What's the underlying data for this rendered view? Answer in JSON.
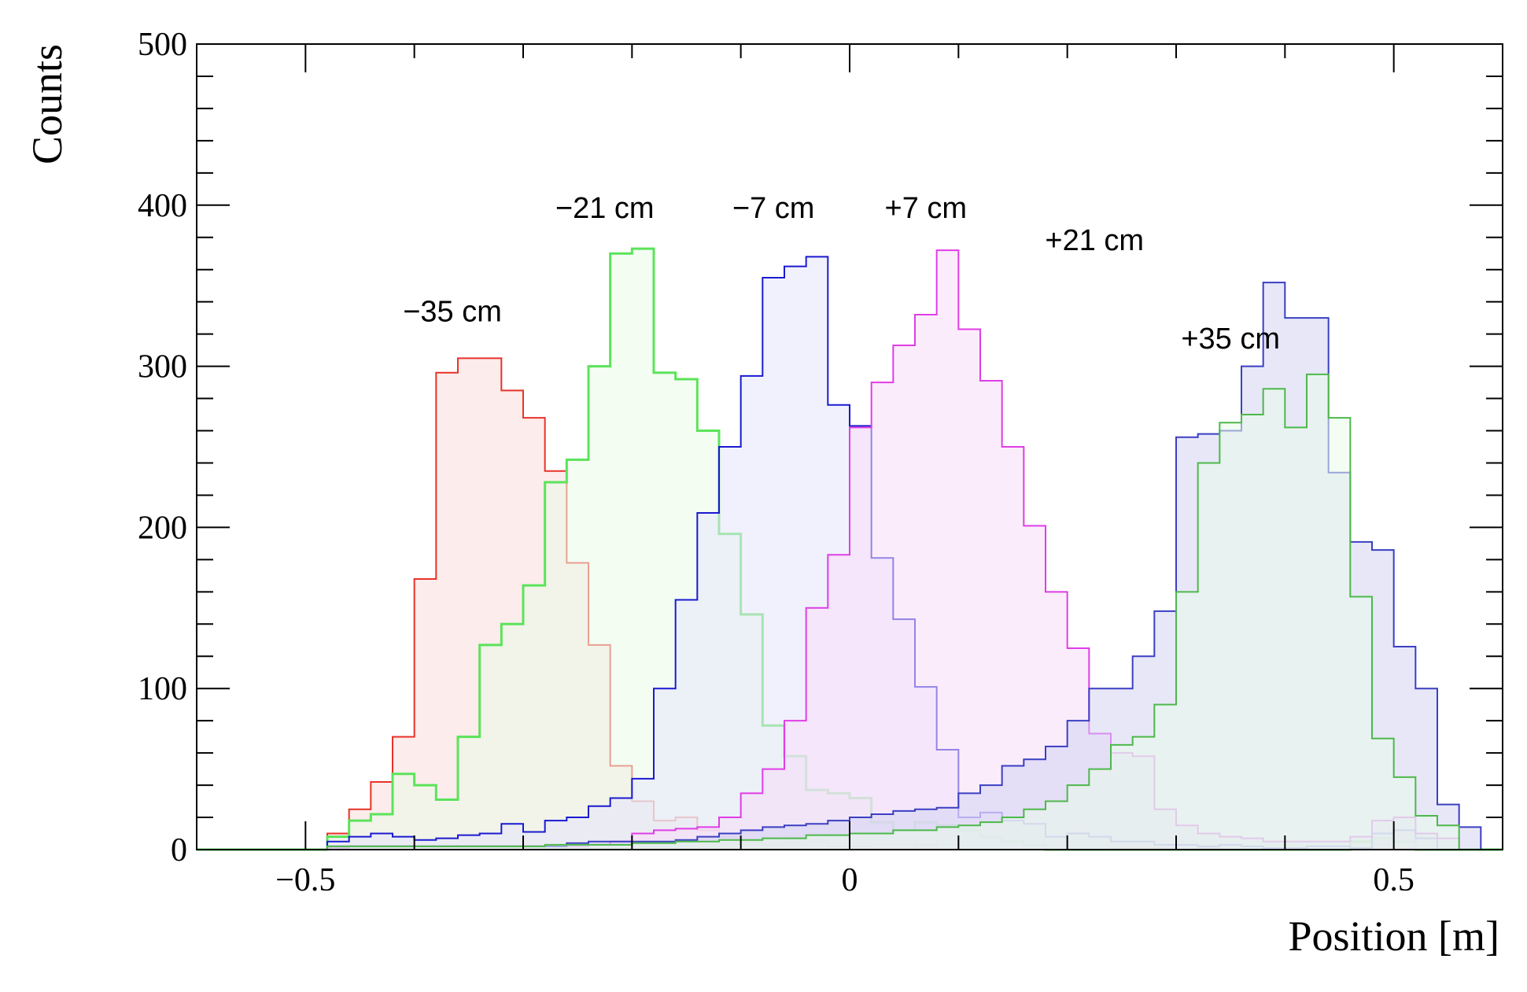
{
  "chart_data": {
    "type": "area",
    "title": "",
    "xlabel": "Position [m]",
    "ylabel": "Counts",
    "xlim": [
      -0.6,
      0.6
    ],
    "ylim": [
      0,
      500
    ],
    "x_ticks": [
      -0.5,
      0,
      0.5
    ],
    "x_tick_labels": [
      "−0.5",
      "0",
      "0.5"
    ],
    "y_ticks": [
      0,
      100,
      200,
      300,
      400,
      500
    ],
    "y_tick_labels": [
      "0",
      "100",
      "200",
      "300",
      "400",
      "500"
    ],
    "grid": false,
    "bin_edges_start": -0.6,
    "bin_width": 0.02,
    "series": [
      {
        "color": "#e8322a",
        "fill": "#f9dcdb",
        "line_width": 2,
        "values": [
          0,
          0,
          0,
          0,
          0,
          0,
          10,
          25,
          42,
          70,
          168,
          296,
          305,
          305,
          285,
          268,
          235,
          178,
          127,
          52,
          30,
          18,
          20,
          12,
          8,
          5,
          3,
          7,
          6,
          2,
          2,
          1,
          1,
          3,
          1,
          0,
          0,
          0,
          0,
          0,
          0,
          0,
          1,
          1,
          1,
          0,
          1,
          0,
          0,
          0,
          1,
          0,
          0,
          1,
          1,
          1,
          0,
          0,
          0,
          0
        ]
      },
      {
        "color": "#5be35a",
        "fill": "#e9fce8",
        "line_width": 3,
        "values": [
          0,
          0,
          0,
          0,
          0,
          0,
          8,
          18,
          22,
          47,
          40,
          31,
          70,
          127,
          140,
          164,
          228,
          242,
          300,
          370,
          373,
          296,
          292,
          260,
          196,
          146,
          77,
          58,
          37,
          35,
          32,
          17,
          12,
          17,
          15,
          12,
          8,
          5,
          3,
          0,
          0,
          0,
          0,
          0,
          0,
          0,
          0,
          0,
          0,
          0,
          0,
          0,
          0,
          5,
          7,
          5,
          0,
          0,
          0,
          0
        ]
      },
      {
        "color": "#1a1ad1",
        "fill": "#e6e6fb",
        "line_width": 2,
        "values": [
          0,
          0,
          0,
          0,
          0,
          0,
          5,
          8,
          10,
          8,
          6,
          7,
          9,
          10,
          16,
          11,
          18,
          20,
          27,
          32,
          44,
          100,
          155,
          209,
          250,
          294,
          355,
          362,
          368,
          276,
          263,
          181,
          143,
          101,
          62,
          20,
          23,
          18,
          16,
          8,
          10,
          8,
          5,
          5,
          3,
          3,
          2,
          3,
          2,
          1,
          1,
          2,
          2,
          1,
          10,
          12,
          7,
          0,
          0,
          0
        ]
      },
      {
        "color": "#df3de6",
        "fill": "#f8dcfa",
        "line_width": 2,
        "values": [
          0,
          0,
          0,
          0,
          0,
          0,
          1,
          2,
          2,
          2,
          2,
          2,
          2,
          2,
          2,
          2,
          2,
          2,
          3,
          5,
          10,
          12,
          13,
          14,
          20,
          35,
          50,
          80,
          150,
          183,
          262,
          290,
          313,
          332,
          372,
          323,
          291,
          250,
          201,
          160,
          125,
          72,
          60,
          58,
          25,
          15,
          10,
          8,
          7,
          5,
          5,
          5,
          5,
          8,
          18,
          20,
          10,
          7,
          0,
          0
        ]
      },
      {
        "color": "#3a3fc2",
        "fill": "#d4d4f2",
        "line_width": 2,
        "values": [
          0,
          0,
          0,
          0,
          0,
          0,
          2,
          2,
          2,
          2,
          2,
          2,
          2,
          2,
          2,
          2,
          2,
          4,
          5,
          5,
          5,
          5,
          6,
          8,
          10,
          12,
          14,
          15,
          16,
          18,
          20,
          22,
          24,
          25,
          26,
          35,
          40,
          52,
          56,
          64,
          80,
          100,
          100,
          120,
          148,
          256,
          258,
          260,
          300,
          352,
          330,
          330,
          234,
          191,
          186,
          126,
          100,
          28,
          14,
          0
        ]
      },
      {
        "color": "#4db84a",
        "fill": "#eafbea",
        "line_width": 2,
        "values": [
          0,
          0,
          0,
          0,
          0,
          0,
          2,
          2,
          2,
          2,
          2,
          2,
          2,
          2,
          2,
          2,
          3,
          3,
          3,
          3,
          4,
          4,
          5,
          5,
          6,
          6,
          7,
          7,
          9,
          9,
          10,
          10,
          12,
          12,
          14,
          15,
          17,
          20,
          25,
          30,
          40,
          50,
          65,
          70,
          90,
          160,
          240,
          265,
          270,
          286,
          262,
          295,
          268,
          157,
          69,
          45,
          21,
          15,
          0,
          0
        ]
      }
    ],
    "annotations": [
      {
        "text": "−35 cm",
        "x": -0.365,
        "y": 328
      },
      {
        "text": "−21 cm",
        "x": -0.225,
        "y": 392
      },
      {
        "text": "−7 cm",
        "x": -0.07,
        "y": 392
      },
      {
        "text": "+7 cm",
        "x": 0.07,
        "y": 392
      },
      {
        "text": "+21 cm",
        "x": 0.225,
        "y": 372
      },
      {
        "text": "+35 cm",
        "x": 0.35,
        "y": 311
      }
    ]
  }
}
